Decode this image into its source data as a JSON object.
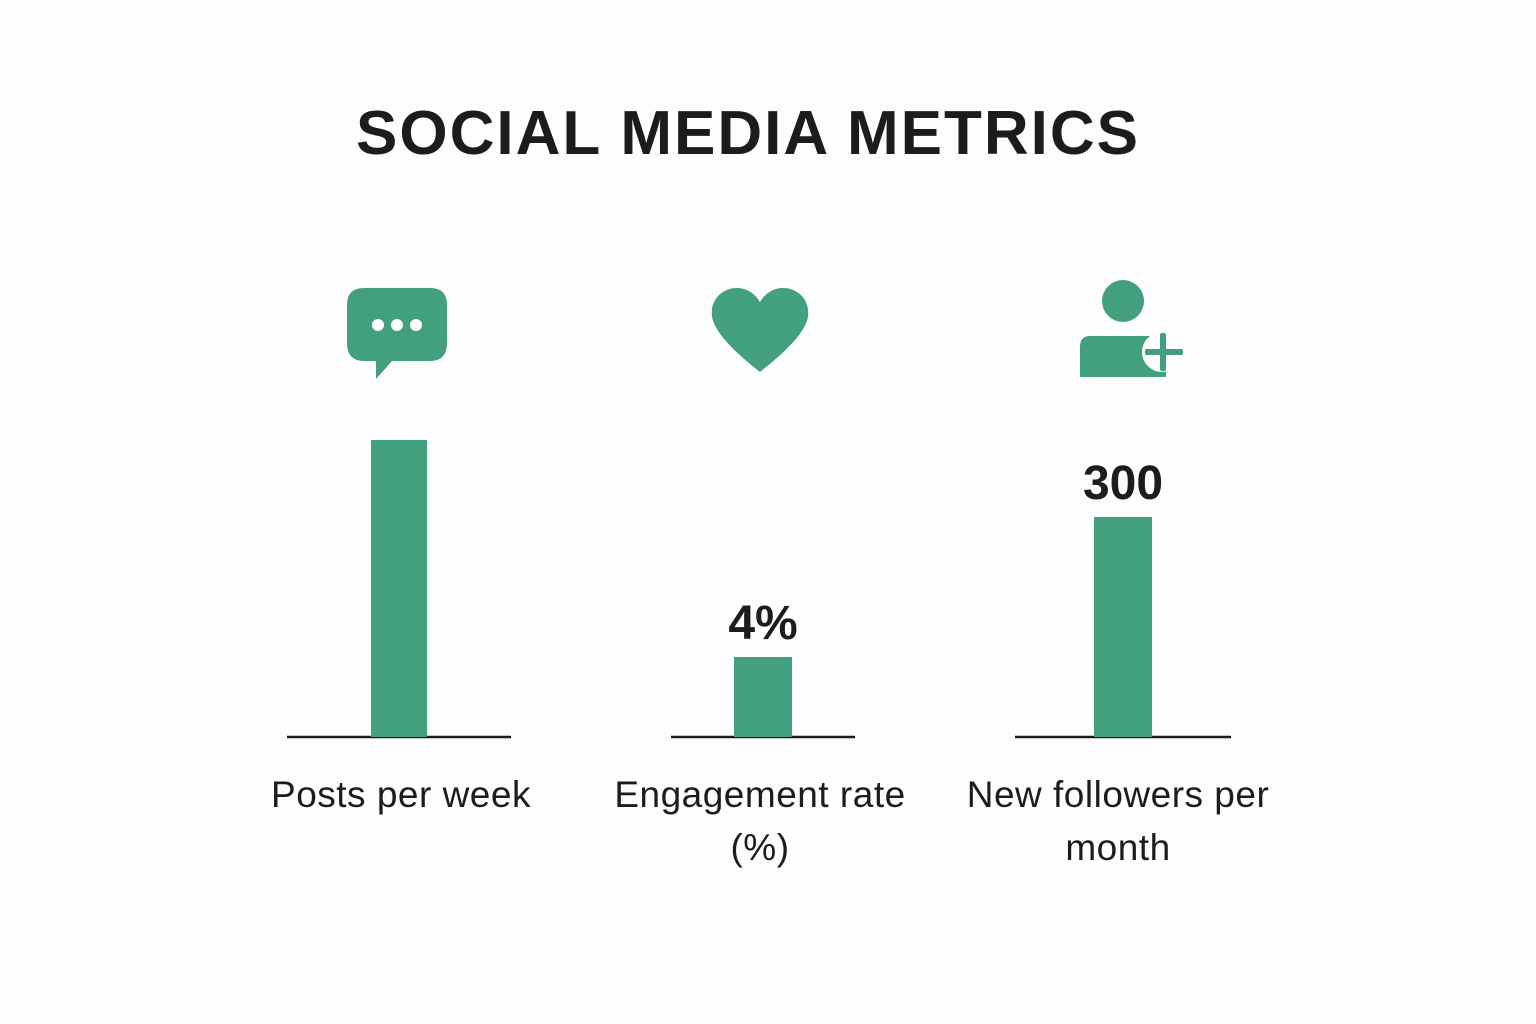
{
  "title": "SOCIAL MEDIA METRICS",
  "colors": {
    "bar": "#42a07c",
    "baseline": "#1c1c1c",
    "text": "#1c1c1c"
  },
  "chart_data": {
    "type": "bar",
    "title": "SOCIAL MEDIA METRICS",
    "categories": [
      "Posts per week",
      "Engagement rate (%)",
      "New followers per month"
    ],
    "data_labels": [
      "",
      "4%",
      "300"
    ],
    "icons": [
      "chat-bubble-icon",
      "heart-icon",
      "add-user-icon"
    ],
    "grid": false,
    "legend": "none"
  }
}
